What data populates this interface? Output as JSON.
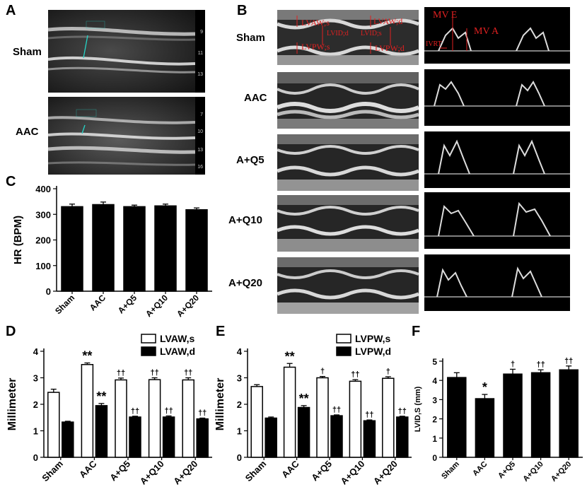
{
  "panels": {
    "a": {
      "letter": "A",
      "rows": [
        "Sham",
        "AAC"
      ],
      "ruler_ticks_sham": [
        "9",
        "11",
        "13"
      ],
      "ruler_ticks_aac": [
        "7",
        "10",
        "13",
        "16"
      ]
    },
    "b": {
      "letter": "B",
      "rows": [
        "Sham",
        "AAC",
        "A+Q5",
        "A+Q10",
        "A+Q20"
      ],
      "mmode_labels": {
        "lvaw_s": "LVAW;s",
        "lvaw_d": "LVAW;d",
        "lvid_d": "LVID;d",
        "lvid_s": "LVID;s",
        "lvpw_s": "LVPW;s",
        "lvpw_d": "LVPW;d"
      },
      "doppler_labels": {
        "mv_e": "MV E",
        "mv_a": "MV A",
        "ivrt": "IVRT"
      }
    },
    "c": {
      "letter": "C"
    },
    "d": {
      "letter": "D"
    },
    "e": {
      "letter": "E"
    },
    "f": {
      "letter": "F"
    }
  },
  "colors": {
    "bar_black": "#000000",
    "bar_white": "#ffffff",
    "annot_red": "#e02020",
    "image_bg": "#1c1c1c"
  },
  "chart_data": [
    {
      "id": "C",
      "type": "bar",
      "categories": [
        "Sham",
        "AAC",
        "A+Q5",
        "A+Q10",
        "A+Q20"
      ],
      "series": [
        {
          "name": "HR",
          "values": [
            330,
            338,
            330,
            333,
            318
          ],
          "errors": [
            10,
            10,
            6,
            7,
            7
          ]
        }
      ],
      "ylabel": "HR (BPM)",
      "ylim": [
        0,
        400
      ],
      "yticks": [
        0,
        100,
        200,
        300,
        400
      ]
    },
    {
      "id": "D",
      "type": "bar",
      "categories": [
        "Sham",
        "AAC",
        "A+Q5",
        "A+Q10",
        "A+Q20"
      ],
      "series": [
        {
          "name": "LVAW,s",
          "fill": "white",
          "values": [
            2.45,
            3.5,
            2.92,
            2.93,
            2.92
          ],
          "errors": [
            0.12,
            0.06,
            0.07,
            0.07,
            0.08
          ],
          "annotations": [
            "",
            "**",
            "††",
            "††",
            "††"
          ]
        },
        {
          "name": "LVAW,d",
          "fill": "black",
          "values": [
            1.33,
            1.95,
            1.52,
            1.52,
            1.45
          ],
          "errors": [
            0.03,
            0.08,
            0.03,
            0.04,
            0.03
          ],
          "annotations": [
            "",
            "**",
            "††",
            "††",
            "††"
          ]
        }
      ],
      "ylabel": "Millimeter",
      "ylim": [
        0,
        4
      ],
      "yticks": [
        0,
        1,
        2,
        3,
        4
      ],
      "legend": "top-right"
    },
    {
      "id": "E",
      "type": "bar",
      "categories": [
        "Sham",
        "AAC",
        "A+Q5",
        "A+Q10",
        "A+Q20"
      ],
      "series": [
        {
          "name": "LVPW,s",
          "fill": "white",
          "values": [
            2.67,
            3.4,
            3.0,
            2.87,
            2.98
          ],
          "errors": [
            0.07,
            0.14,
            0.05,
            0.06,
            0.06
          ],
          "annotations": [
            "",
            "**",
            "†",
            "††",
            "†"
          ]
        },
        {
          "name": "LVPW,d",
          "fill": "black",
          "values": [
            1.48,
            1.88,
            1.57,
            1.38,
            1.52
          ],
          "errors": [
            0.04,
            0.07,
            0.03,
            0.03,
            0.03
          ],
          "annotations": [
            "",
            "**",
            "††",
            "††",
            "††"
          ]
        }
      ],
      "ylabel": "Millimeter",
      "ylim": [
        0,
        4
      ],
      "yticks": [
        0,
        1,
        2,
        3,
        4
      ],
      "legend": "top-right"
    },
    {
      "id": "F",
      "type": "bar",
      "categories": [
        "Sham",
        "AAC",
        "A+Q5",
        "A+Q10",
        "A+Q20"
      ],
      "series": [
        {
          "name": "LVID,S",
          "values": [
            4.15,
            3.05,
            4.33,
            4.4,
            4.55
          ],
          "errors": [
            0.25,
            0.22,
            0.25,
            0.15,
            0.2
          ],
          "annotations": [
            "",
            "*",
            "†",
            "††",
            "††"
          ]
        }
      ],
      "ylabel": "LVID,S (mm)",
      "ylim": [
        0,
        5
      ],
      "yticks": [
        0,
        1,
        2,
        3,
        4,
        5
      ]
    }
  ]
}
